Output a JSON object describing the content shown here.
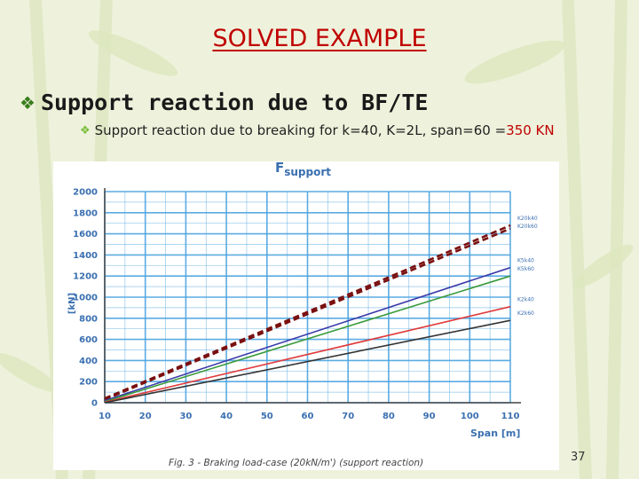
{
  "slide": {
    "title": "SOLVED EXAMPLE",
    "bullet1": "Support reaction due to BF/TE",
    "bullet2_prefix": "Support reaction due to breaking for k=40, K=2L, span=60 = ",
    "bullet2_highlight": "350 KN",
    "page_number": "37"
  },
  "colors": {
    "title": "#c00000",
    "highlight": "#c00000",
    "grid": "#4aa3df",
    "series_dark_red": "#7a1010",
    "series_blue": "#3a3aa8",
    "series_green": "#3a9a3a",
    "series_red": "#e03a3a",
    "series_black": "#333333"
  },
  "chart_data": {
    "type": "line",
    "title": "F_support",
    "title_main": "F",
    "title_sub": "support",
    "xlabel": "Span [m]",
    "ylabel": "[kN]",
    "caption": "Fig. 3 - Braking load-case (20kN/m') (support reaction)",
    "xlim": [
      10,
      110
    ],
    "ylim": [
      0,
      2000
    ],
    "xticks": [
      10,
      20,
      30,
      40,
      50,
      60,
      70,
      80,
      90,
      100,
      110
    ],
    "yticks": [
      0,
      200,
      400,
      600,
      800,
      1000,
      1200,
      1400,
      1600,
      1800,
      2000
    ],
    "grid": true,
    "x": [
      10,
      110
    ],
    "series": [
      {
        "name": "K20k40",
        "values": [
          40,
          1680
        ],
        "color": "#7a1010",
        "dash": true
      },
      {
        "name": "K20k60",
        "values": [
          30,
          1650
        ],
        "color": "#7a1010",
        "dash": true
      },
      {
        "name": "K5k40",
        "values": [
          20,
          1280
        ],
        "color": "#3a3aa8",
        "dash": false
      },
      {
        "name": "K5k60",
        "values": [
          10,
          1200
        ],
        "color": "#3a9a3a",
        "dash": false
      },
      {
        "name": "K2k40",
        "values": [
          5,
          910
        ],
        "color": "#e03a3a",
        "dash": false
      },
      {
        "name": "K2k60",
        "values": [
          0,
          780
        ],
        "color": "#333333",
        "dash": false
      }
    ]
  }
}
